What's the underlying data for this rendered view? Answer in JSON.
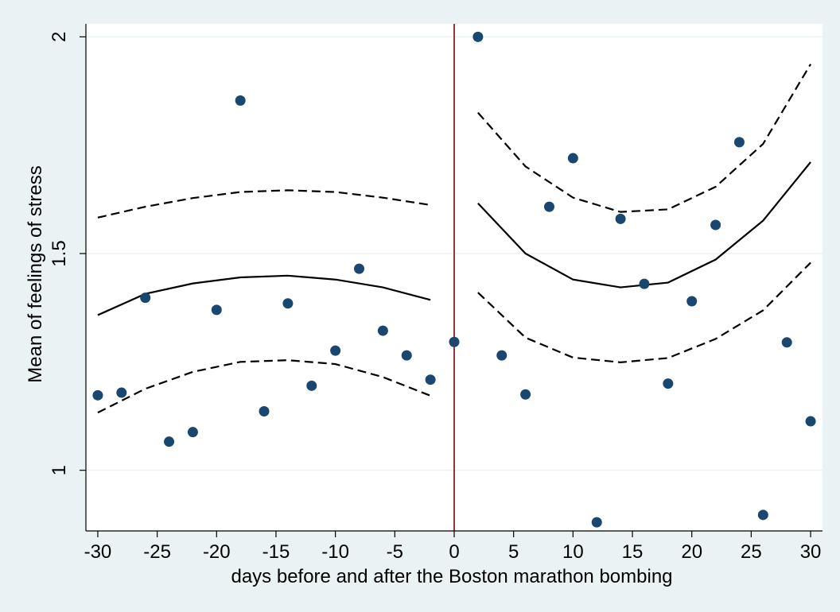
{
  "chart_data": {
    "type": "scatter",
    "title": "",
    "xlabel": "days before and after the Boston marathon bombing",
    "ylabel": "Mean of feelings of stress",
    "xlim": [
      -31,
      31
    ],
    "ylim": [
      0.86,
      2.03
    ],
    "x_ticks": [
      -30,
      -25,
      -20,
      -15,
      -10,
      -5,
      0,
      5,
      10,
      15,
      20,
      25,
      30
    ],
    "y_ticks": [
      1,
      1.5,
      2
    ],
    "x_tick_labels": [
      "-30",
      "-25",
      "-20",
      "-15",
      "-10",
      "-5",
      "0",
      "5",
      "10",
      "15",
      "20",
      "25",
      "30"
    ],
    "y_tick_labels": [
      "1",
      "1.5",
      "2"
    ],
    "grid": "horizontal",
    "legend": "none",
    "reference_line_x": 0,
    "colors": {
      "background": "#eaf2f3",
      "plot_background": "#ffffff",
      "points": "#1a476f",
      "reference_line": "#90353b",
      "fit_lines": "#000000",
      "gridlines": "#eaf2f3"
    },
    "series": [
      {
        "type": "scatter",
        "x": [
          -30,
          -28,
          -26,
          -24,
          -22,
          -20,
          -18,
          -16,
          -14,
          -12,
          -10,
          -8,
          -6,
          -4,
          -2,
          0,
          2,
          4,
          6,
          8,
          10,
          12,
          14,
          16,
          18,
          20,
          22,
          24,
          26,
          28,
          30
        ],
        "y": [
          1.173,
          1.179,
          1.398,
          1.066,
          1.088,
          1.37,
          1.853,
          1.136,
          1.385,
          1.195,
          1.276,
          1.465,
          1.322,
          1.265,
          1.209,
          1.296,
          2.0,
          1.265,
          1.175,
          1.608,
          1.72,
          0.88,
          1.58,
          1.43,
          1.2,
          1.39,
          1.566,
          1.757,
          0.897,
          1.295,
          1.113
        ]
      },
      {
        "type": "line",
        "style": "solid",
        "x": [
          -30,
          -26,
          -22,
          -18,
          -14,
          -10,
          -6,
          -2
        ],
        "y": [
          1.358,
          1.407,
          1.431,
          1.445,
          1.449,
          1.44,
          1.422,
          1.393
        ]
      },
      {
        "type": "line",
        "style": "dashed",
        "x": [
          -30,
          -26,
          -22,
          -18,
          -14,
          -10,
          -6,
          -2
        ],
        "y": [
          1.583,
          1.608,
          1.628,
          1.642,
          1.646,
          1.642,
          1.629,
          1.612
        ]
      },
      {
        "type": "line",
        "style": "dashed",
        "x": [
          -30,
          -26,
          -22,
          -18,
          -14,
          -10,
          -6,
          -2
        ],
        "y": [
          1.133,
          1.188,
          1.227,
          1.25,
          1.254,
          1.245,
          1.215,
          1.172
        ]
      },
      {
        "type": "line",
        "style": "solid",
        "x": [
          2,
          6,
          10,
          14,
          18,
          22,
          26,
          30
        ],
        "y": [
          1.616,
          1.5,
          1.44,
          1.422,
          1.433,
          1.486,
          1.576,
          1.711
        ]
      },
      {
        "type": "line",
        "style": "dashed",
        "x": [
          2,
          6,
          10,
          14,
          18,
          22,
          26,
          30
        ],
        "y": [
          1.825,
          1.701,
          1.629,
          1.596,
          1.602,
          1.654,
          1.753,
          1.937
        ]
      },
      {
        "type": "line",
        "style": "dashed",
        "x": [
          2,
          6,
          10,
          14,
          18,
          22,
          26,
          30
        ],
        "y": [
          1.41,
          1.306,
          1.26,
          1.249,
          1.259,
          1.303,
          1.369,
          1.479
        ]
      }
    ]
  }
}
